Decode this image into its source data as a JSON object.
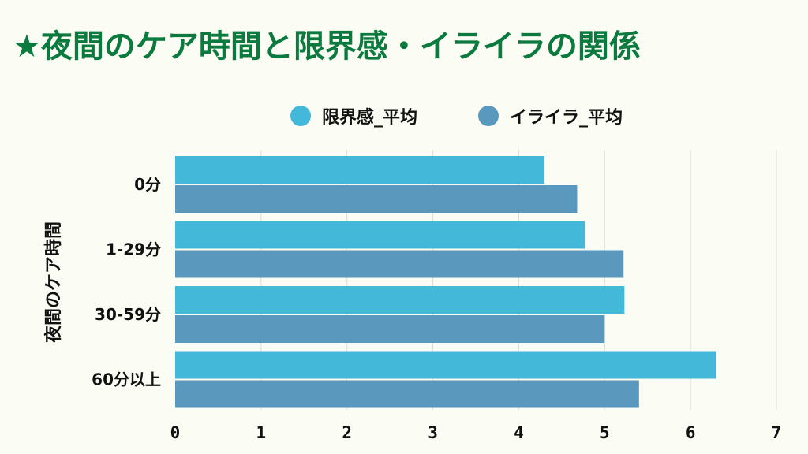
{
  "title": "★夜間のケア時間と限界感・イライラの関係",
  "colors": {
    "title": "#0b7a3e",
    "series1": "#43b8d8",
    "series2": "#5b98bd",
    "grid": "#dcdcd6"
  },
  "chart_data": {
    "type": "bar",
    "orientation": "horizontal",
    "title": "★夜間のケア時間と限界感・イライラの関係",
    "ylabel": "夜間のケア時間",
    "xlabel": "",
    "categories": [
      "0分",
      "1-29分",
      "30-59分",
      "60分以上"
    ],
    "series": [
      {
        "name": "限界感_平均",
        "values": [
          4.3,
          4.77,
          5.23,
          6.3
        ]
      },
      {
        "name": "イライラ_平均",
        "values": [
          4.68,
          5.22,
          5.0,
          5.4
        ]
      }
    ],
    "xlim": [
      0,
      7
    ],
    "xticks": [
      "0",
      "1",
      "2",
      "3",
      "4",
      "5",
      "6",
      "7"
    ],
    "grid": true,
    "legend": "top-center"
  }
}
